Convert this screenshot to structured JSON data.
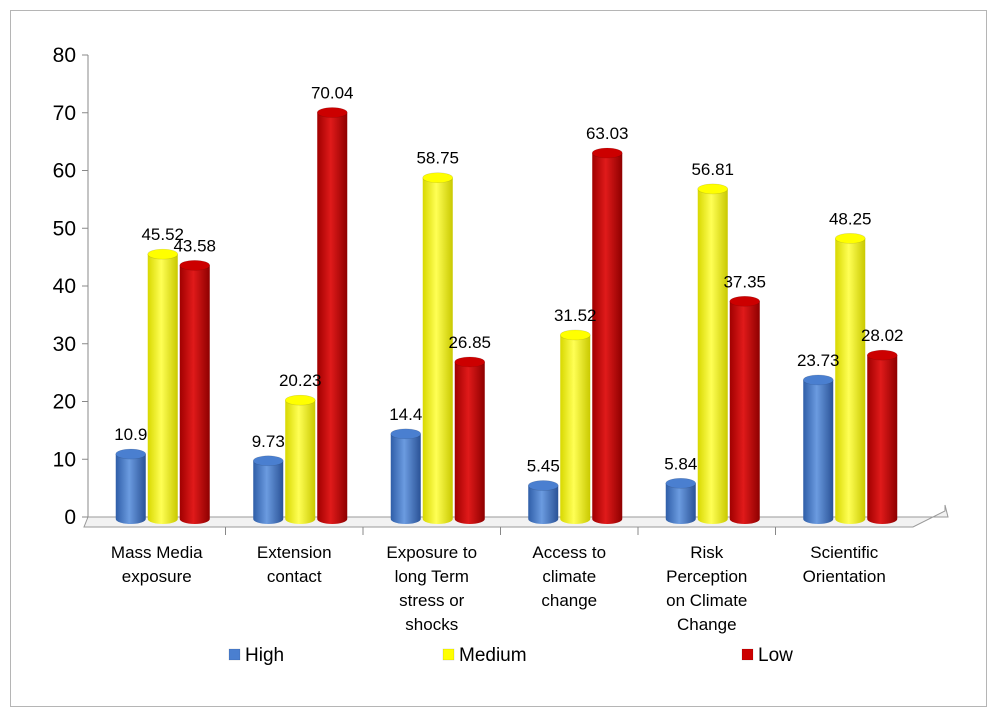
{
  "chart_data": {
    "type": "bar",
    "categories": [
      [
        "Mass Media",
        "exposure"
      ],
      [
        "Extension",
        "contact"
      ],
      [
        "Exposure to",
        "long Term",
        "stress or",
        "shocks"
      ],
      [
        "Access to",
        "climate",
        "change"
      ],
      [
        "Risk",
        "Perception",
        "on Climate",
        "Change"
      ],
      [
        "Scientific",
        "Orientation"
      ]
    ],
    "series": [
      {
        "name": "High",
        "color": "#4a7fd0",
        "values": [
          10.9,
          9.73,
          14.4,
          5.45,
          5.84,
          23.73
        ],
        "labels": [
          "10.9",
          "9.73",
          "14.4",
          "5.45",
          "5.84",
          "23.73"
        ]
      },
      {
        "name": "Medium",
        "color": "#ffff00",
        "values": [
          45.52,
          20.23,
          58.75,
          31.52,
          56.81,
          48.25
        ],
        "labels": [
          "45.52",
          "20.23",
          "58.75",
          "31.52",
          "56.81",
          "48.25"
        ]
      },
      {
        "name": "Low",
        "color": "#cc0000",
        "values": [
          43.58,
          70.04,
          26.85,
          63.03,
          37.35,
          28.02
        ],
        "labels": [
          "43.58",
          "70.04",
          "26.85",
          "63.03",
          "37.35",
          "28.02"
        ]
      }
    ],
    "ylim": [
      0,
      80
    ],
    "yticks": [
      "0",
      "10",
      "20",
      "30",
      "40",
      "50",
      "60",
      "70",
      "80"
    ],
    "legend_position": "bottom",
    "grid": false,
    "title": "",
    "xlabel": "",
    "ylabel": ""
  }
}
